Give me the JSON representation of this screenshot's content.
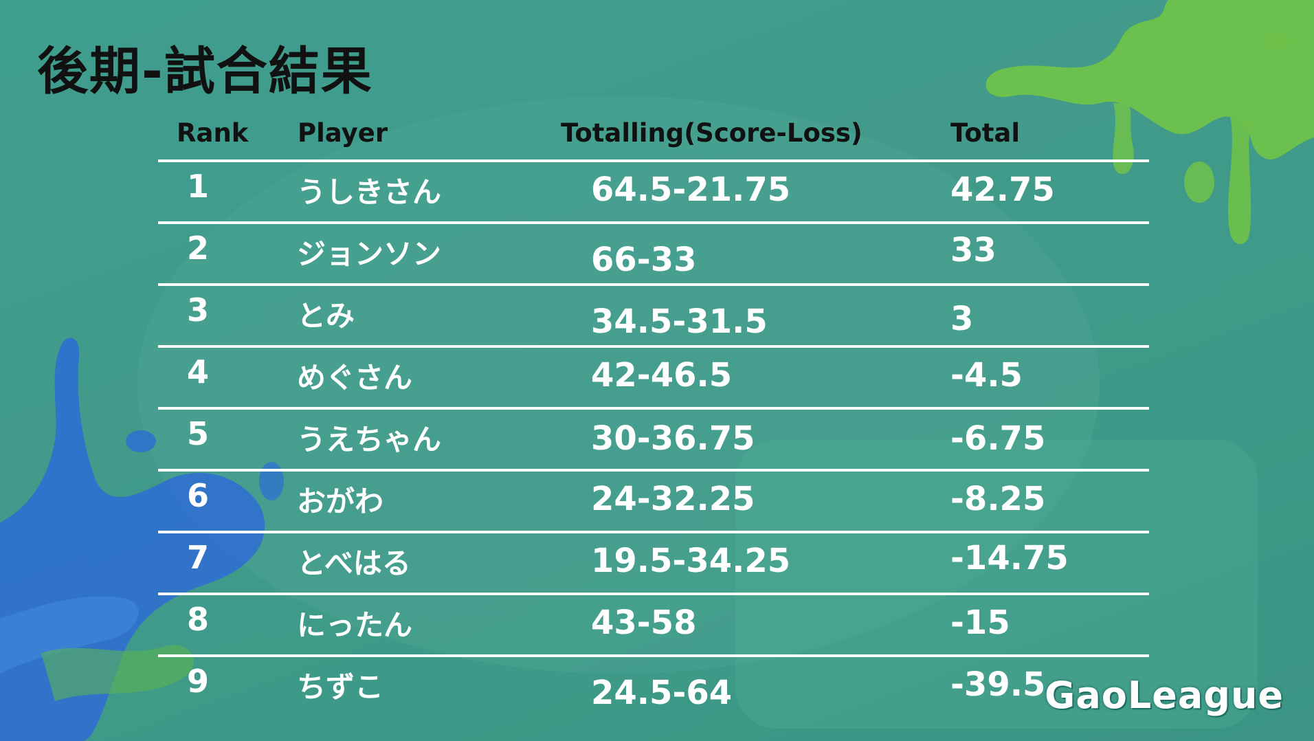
{
  "title": "後期-試合結果",
  "headers": {
    "rank": "Rank",
    "player": "Player",
    "score": "Totalling(Score-Loss)",
    "total": "Total"
  },
  "rows": [
    {
      "rank": "1",
      "player": "うしきさん",
      "score": "64.5-21.75",
      "total": "42.75"
    },
    {
      "rank": "2",
      "player": "ジョンソン",
      "score": "66-33",
      "total": "33"
    },
    {
      "rank": "3",
      "player": "とみ",
      "score": "34.5-31.5",
      "total": "3"
    },
    {
      "rank": "4",
      "player": "めぐさん",
      "score": "42-46.5",
      "total": "-4.5"
    },
    {
      "rank": "5",
      "player": "うえちゃん",
      "score": "30-36.75",
      "total": "-6.75"
    },
    {
      "rank": "6",
      "player": "おがわ",
      "score": "24-32.25",
      "total": "-8.25"
    },
    {
      "rank": "7",
      "player": "とべはる",
      "score": "19.5-34.25",
      "total": "-14.75"
    },
    {
      "rank": "8",
      "player": "にったん",
      "score": "43-58",
      "total": "-15"
    },
    {
      "rank": "9",
      "player": "ちずこ",
      "score": "24.5-64",
      "total": "-39.5"
    }
  ],
  "logo": "GaoLeague",
  "colors": {
    "background": "#3f9e8e",
    "splash_green": "#6fc24a",
    "splash_blue": "#2f6fd0",
    "title_text": "#111111",
    "row_text": "#ffffff"
  }
}
